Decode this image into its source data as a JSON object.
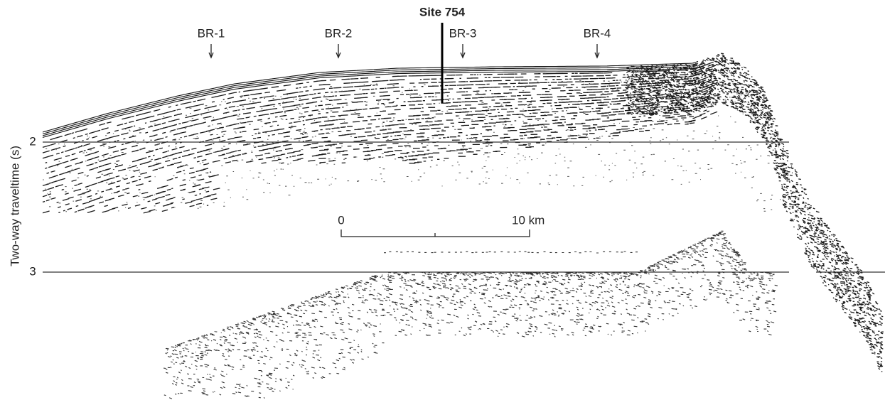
{
  "profile": {
    "site_label": "Site 754",
    "markers": [
      "BR-1",
      "BR-2",
      "BR-3",
      "BR-4"
    ],
    "axis_label": "Two-way traveltime (s)",
    "axis_ticks": [
      "2",
      "3"
    ],
    "scale_bar": {
      "start_label": "0",
      "end_label": "10 km"
    }
  }
}
